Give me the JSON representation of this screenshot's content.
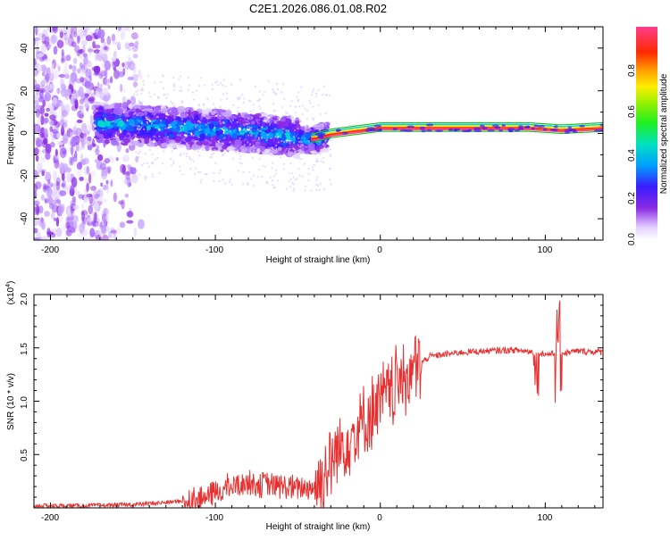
{
  "chart_data": [
    {
      "type": "heatmap",
      "title": "C2E1.2026.086.01.08.R02",
      "xlabel": "Height of straight line (km)",
      "ylabel": "Frequency (Hz)",
      "xlim": [
        -210,
        135
      ],
      "ylim": [
        -50,
        50
      ],
      "xticks": [
        "-200",
        "-100",
        "0",
        "100"
      ],
      "yticks": [
        "-40",
        "-20",
        "0",
        "20",
        "40"
      ],
      "colorbar": {
        "label": "Normalized spectral amplitude",
        "range": [
          0,
          1
        ],
        "ticks": [
          "0.0",
          "0.2",
          "0.4",
          "0.6",
          "0.8"
        ]
      },
      "trace": {
        "description": "Carrier frequency ridge vs height",
        "x": [
          -170,
          -150,
          -130,
          -110,
          -90,
          -70,
          -50,
          -45,
          -40,
          -35,
          -30,
          -20,
          -10,
          0,
          20,
          50,
          90,
          110,
          135
        ],
        "y": [
          5,
          4,
          3,
          2,
          1,
          0,
          -2,
          -3,
          -3,
          -2,
          -1,
          0,
          1,
          2,
          2,
          2,
          2,
          1,
          2
        ]
      }
    },
    {
      "type": "line",
      "title": "",
      "xlabel": "Height of straight line (km)",
      "ylabel": "SNR (10 * v/v)",
      "y_scale_label": "(x10^4)",
      "y_scale_base": "x10",
      "y_scale_exp": "4",
      "xlim": [
        -210,
        135
      ],
      "ylim": [
        0,
        2.0
      ],
      "xticks": [
        "-200",
        "-100",
        "0",
        "100"
      ],
      "yticks": [
        "0.5",
        "1.0",
        "1.5",
        "2.0"
      ],
      "series": [
        {
          "name": "SNR",
          "color": "#e83030",
          "x": [
            -210,
            -180,
            -150,
            -130,
            -110,
            -100,
            -90,
            -80,
            -70,
            -60,
            -50,
            -40,
            -35,
            -30,
            -25,
            -20,
            -15,
            -10,
            -5,
            0,
            10,
            20,
            30,
            50,
            80,
            95,
            100,
            110,
            120,
            135
          ],
          "y": [
            0.02,
            0.02,
            0.03,
            0.05,
            0.08,
            0.14,
            0.2,
            0.24,
            0.22,
            0.2,
            0.18,
            0.2,
            0.28,
            0.42,
            0.55,
            0.65,
            0.72,
            0.8,
            0.9,
            0.98,
            1.15,
            1.3,
            1.42,
            1.46,
            1.48,
            1.46,
            1.44,
            1.45,
            1.47,
            1.46
          ]
        }
      ]
    }
  ]
}
